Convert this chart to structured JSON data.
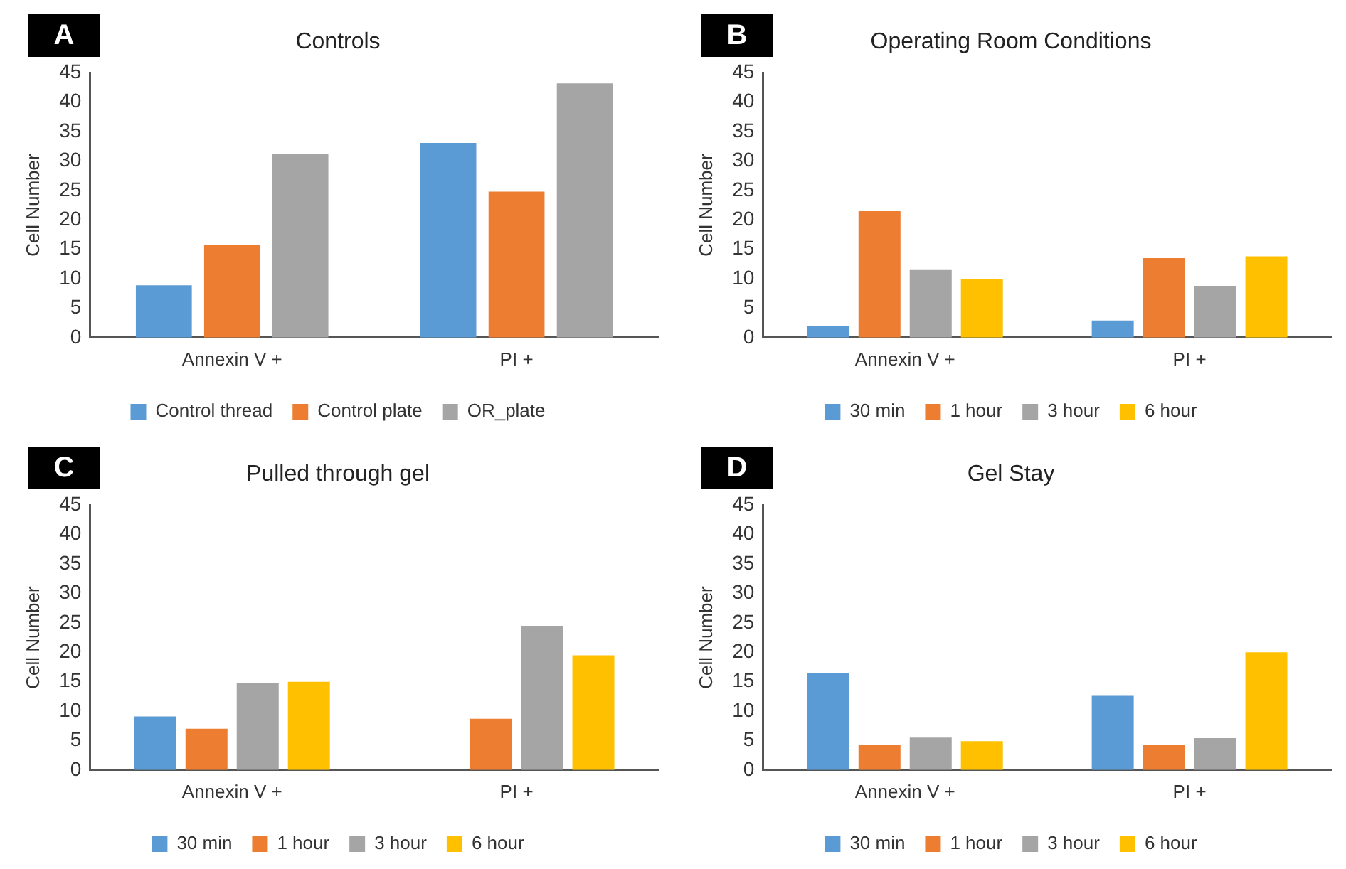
{
  "chart_data": [
    {
      "type": "bar",
      "title": "Controls",
      "annotations": [
        "A"
      ],
      "ylabel": "Cell Number",
      "categories": [
        "Annexin V +",
        "PI +"
      ],
      "series": [
        {
          "name": "Control thread",
          "color": "#5b9bd5",
          "values": [
            8.9,
            33.1
          ]
        },
        {
          "name": "Control plate",
          "color": "#ed7d31",
          "values": [
            15.7,
            24.8
          ]
        },
        {
          "name": "OR_plate",
          "color": "#a5a5a5",
          "values": [
            31.2,
            43.2
          ]
        }
      ],
      "ylim": [
        0,
        45
      ],
      "yticks": [
        0,
        5,
        10,
        15,
        20,
        25,
        30,
        35,
        40,
        45
      ],
      "grid": false,
      "legend": "bottom"
    },
    {
      "type": "bar",
      "title": "Operating Room Conditions",
      "annotations": [
        "B"
      ],
      "ylabel": "Cell Number",
      "categories": [
        "Annexin V +",
        "PI +"
      ],
      "series": [
        {
          "name": "30 min",
          "color": "#5b9bd5",
          "values": [
            1.9,
            2.9
          ]
        },
        {
          "name": "1 hour",
          "color": "#ed7d31",
          "values": [
            21.5,
            13.5
          ]
        },
        {
          "name": "3 hour",
          "color": "#a5a5a5",
          "values": [
            11.6,
            8.8
          ]
        },
        {
          "name": "6 hour",
          "color": "#ffc000",
          "values": [
            9.9,
            13.8
          ]
        }
      ],
      "ylim": [
        0,
        45
      ],
      "yticks": [
        0,
        5,
        10,
        15,
        20,
        25,
        30,
        35,
        40,
        45
      ],
      "grid": false,
      "legend": "bottom"
    },
    {
      "type": "bar",
      "title": "Pulled through gel",
      "annotations": [
        "C"
      ],
      "ylabel": "Cell Number",
      "categories": [
        "Annexin V +",
        "PI +"
      ],
      "series": [
        {
          "name": "30 min",
          "color": "#5b9bd5",
          "values": [
            9.1,
            null
          ]
        },
        {
          "name": "1 hour",
          "color": "#ed7d31",
          "values": [
            7.0,
            8.7
          ]
        },
        {
          "name": "3 hour",
          "color": "#a5a5a5",
          "values": [
            14.8,
            24.5
          ]
        },
        {
          "name": "6 hour",
          "color": "#ffc000",
          "values": [
            15.0,
            19.5
          ]
        }
      ],
      "ylim": [
        0,
        45
      ],
      "yticks": [
        0,
        5,
        10,
        15,
        20,
        25,
        30,
        35,
        40,
        45
      ],
      "grid": false,
      "legend": "bottom"
    },
    {
      "type": "bar",
      "title": "Gel Stay",
      "annotations": [
        "D"
      ],
      "ylabel": "Cell Number",
      "categories": [
        "Annexin V +",
        "PI +"
      ],
      "series": [
        {
          "name": "30 min",
          "color": "#5b9bd5",
          "values": [
            16.5,
            12.6
          ]
        },
        {
          "name": "1 hour",
          "color": "#ed7d31",
          "values": [
            4.2,
            4.2
          ]
        },
        {
          "name": "3 hour",
          "color": "#a5a5a5",
          "values": [
            5.5,
            5.4
          ]
        },
        {
          "name": "6 hour",
          "color": "#ffc000",
          "values": [
            4.9,
            20.0
          ]
        }
      ],
      "ylim": [
        0,
        45
      ],
      "yticks": [
        0,
        5,
        10,
        15,
        20,
        25,
        30,
        35,
        40,
        45
      ],
      "grid": false,
      "legend": "bottom"
    }
  ]
}
